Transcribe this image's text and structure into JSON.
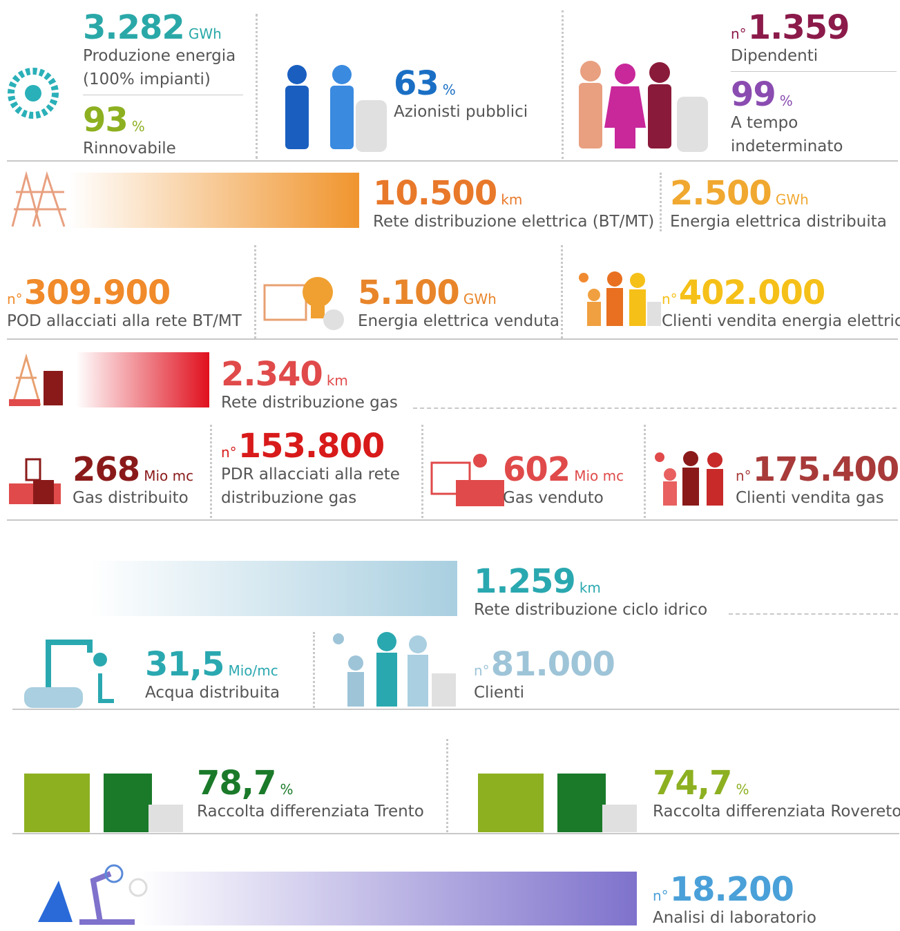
{
  "stats": [
    {
      "value": "3.282",
      "unit": "GWh",
      "label": [
        "Produzione energia",
        "(100% impianti)"
      ],
      "color": "#2aa8a8"
    },
    {
      "value": "93",
      "unit": "%",
      "label": [
        "Rinnovabile"
      ],
      "color": "#8db021"
    },
    {
      "value": "63",
      "unit": "%",
      "label": [
        "Azionisti pubblici"
      ],
      "color": "#1a6fc4"
    },
    {
      "prefix": "n°",
      "value": "1.359",
      "label": [
        "Dipendenti"
      ],
      "color": "#8b1a4a"
    },
    {
      "value": "99",
      "unit": "%",
      "label": [
        "A tempo",
        "indeterminato"
      ],
      "color": "#8a4cb0"
    },
    {
      "value": "10.500",
      "unit": "km",
      "label": [
        "Rete distribuzione elettrica (BT/MT)"
      ],
      "color": "#e8782a"
    },
    {
      "value": "2.500",
      "unit": "GWh",
      "label": [
        "Energia elettrica distribuita"
      ],
      "color": "#f0a830"
    },
    {
      "prefix": "n°",
      "value": "309.900",
      "label": [
        "POD allacciati alla rete BT/MT"
      ],
      "color": "#f08a2a"
    },
    {
      "value": "5.100",
      "unit": "GWh",
      "label": [
        "Energia elettrica venduta"
      ],
      "color": "#e8852a"
    },
    {
      "prefix": "n°",
      "value": "402.000",
      "label": [
        "Clienti vendita energia elettrica"
      ],
      "color": "#f5c018"
    },
    {
      "value": "2.340",
      "unit": "km",
      "label": [
        "Rete distribuzione gas"
      ],
      "color": "#e04a4a"
    },
    {
      "value": "268",
      "unit": "Mio mc",
      "label": [
        "Gas distribuito"
      ],
      "color": "#8a1a1a"
    },
    {
      "prefix": "n°",
      "value": "153.800",
      "label": [
        "PDR allacciati alla rete",
        "distribuzione gas"
      ],
      "color": "#d81a1a"
    },
    {
      "value": "602",
      "unit": "Mio mc",
      "label": [
        "Gas venduto"
      ],
      "color": "#e04a4a"
    },
    {
      "prefix": "n°",
      "value": "175.400",
      "label": [
        "Clienti vendita gas"
      ],
      "color": "#a83a3a"
    },
    {
      "value": "1.259",
      "unit": "km",
      "label": [
        "Rete distribuzione ciclo idrico"
      ],
      "color": "#2aa8b0"
    },
    {
      "value": "31,5",
      "unit": "Mio/mc",
      "label": [
        "Acqua distribuita"
      ],
      "color": "#2aa8b0"
    },
    {
      "prefix": "n°",
      "value": "81.000",
      "label": [
        "Clienti"
      ],
      "color": "#9ec4d8"
    },
    {
      "value": "78,7",
      "unit": "%",
      "label": [
        "Raccolta differenziata Trento"
      ],
      "color": "#1a7a2a"
    },
    {
      "value": "74,7",
      "unit": "%",
      "label": [
        "Raccolta differenziata Rovereto"
      ],
      "color": "#8db021"
    },
    {
      "prefix": "n°",
      "value": "18.200",
      "label": [
        "Analisi di laboratorio"
      ],
      "color": "#4aa0d8"
    }
  ]
}
